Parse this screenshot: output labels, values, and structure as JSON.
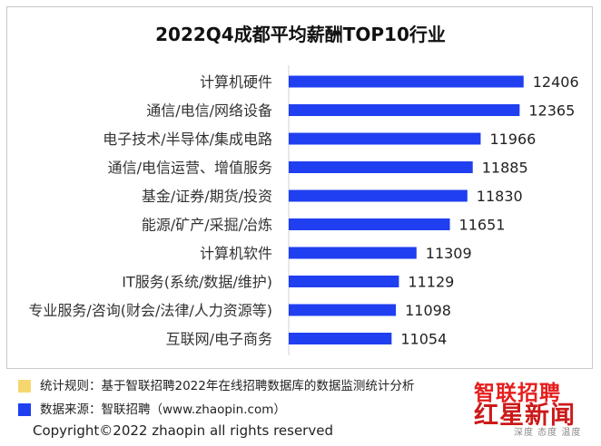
{
  "chart_data": {
    "type": "bar",
    "orientation": "horizontal",
    "title": "2022Q4成都平均薪酬TOP10行业",
    "categories": [
      "计算机硬件",
      "通信/电信/网络设备",
      "电子技术/半导体/集成电路",
      "通信/电信运营、增值服务",
      "基金/证券/期货/投资",
      "能源/矿产/采掘/冶炼",
      "计算机软件",
      "IT服务(系统/数据/维护)",
      "专业服务/咨询(财会/法律/人力资源等)",
      "互联网/电子商务"
    ],
    "values": [
      12406,
      12365,
      11966,
      11885,
      11830,
      11651,
      11309,
      11129,
      11098,
      11054
    ],
    "bar_color": "#1f3ff0",
    "xlim": [
      10000,
      12650
    ],
    "grid": false,
    "axis_line_color": "#d0d0d0"
  },
  "notes": [
    {
      "text": "统计规则：基于智联招聘2022年在线招聘数据库的数据监测统计分析",
      "color": "#f5d76e"
    },
    {
      "text": "数据来源：智联招聘（www.zhaopin.com）",
      "color": "#1f3ff0"
    }
  ],
  "copyright": "Copyright©2022 zhaopin all rights reserved",
  "logo": {
    "top": "智联招聘",
    "main": "红星新闻",
    "sub": "深度 态度 温度"
  }
}
